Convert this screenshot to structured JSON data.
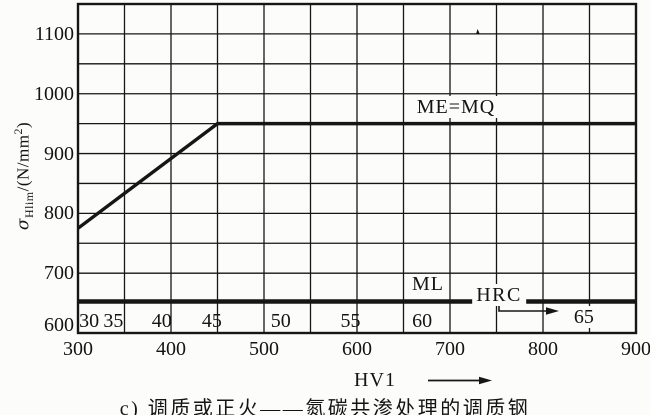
{
  "figure": {
    "caption": "c) 调质或正火——氮碳共渗处理的调质钢"
  },
  "chart_data": {
    "type": "line",
    "title": "c) 调质或正火——氮碳共渗处理的调质钢",
    "xlabel": "HV1",
    "ylabel": "σHlim/(N/mm²)",
    "grid": true,
    "x_axis": {
      "label": "HV1",
      "min": 300,
      "max": 900,
      "grid_step": 50,
      "ticks": [
        300,
        400,
        500,
        600,
        700,
        800,
        900
      ]
    },
    "y_axis": {
      "label": "σHlim/(N/mm²)",
      "label_parts": {
        "sigma": "σ",
        "sub": "Hlim",
        "rest_open": "/(N/mm",
        "sup": "2",
        "rest_close": ")"
      },
      "min": 600,
      "max": 1150,
      "grid_step": 50,
      "ticks": [
        600,
        700,
        800,
        900,
        1000,
        1100
      ]
    },
    "series": [
      {
        "name": "ME=MQ",
        "points": [
          [
            300,
            775
          ],
          [
            450,
            950
          ],
          [
            900,
            950
          ]
        ]
      },
      {
        "name": "ML",
        "points": [
          [
            300,
            650
          ],
          [
            900,
            650
          ]
        ]
      }
    ],
    "secondary_scale": {
      "name": "HRC",
      "unit_axis": "HV1",
      "marks": [
        {
          "value": "30",
          "hv": 312
        },
        {
          "value": "35",
          "hv": 338
        },
        {
          "value": "40",
          "hv": 390
        },
        {
          "value": "45",
          "hv": 444
        },
        {
          "value": "50",
          "hv": 518
        },
        {
          "value": "55",
          "hv": 593
        },
        {
          "value": "60",
          "hv": 670
        },
        {
          "value": "65",
          "hv": 844,
          "raised": true
        }
      ]
    }
  },
  "colors": {
    "ink": "#161616",
    "paper": "#fcfcfa"
  }
}
